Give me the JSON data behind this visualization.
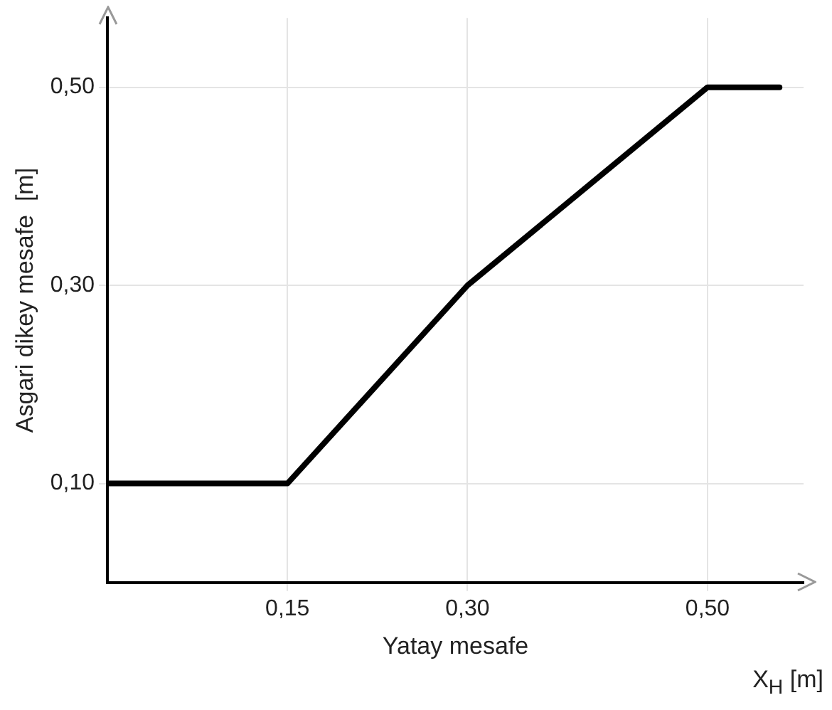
{
  "chart_data": {
    "type": "line",
    "xlabel": "Yatay mesafe",
    "ylabel": "Asgari dikey mesafe  [m]",
    "annotations": [
      "X$_{H}$ [m]"
    ],
    "x": [
      0,
      0.15,
      0.3,
      0.5,
      0.56
    ],
    "series": [
      {
        "color": "#000000",
        "values": [
          0.1,
          0.1,
          0.3,
          0.5,
          0.5
        ]
      }
    ],
    "xlim": [
      0,
      0.58
    ],
    "ylim": [
      0,
      0.57
    ],
    "xticks": [
      {
        "value": 0.15,
        "label": "0,15"
      },
      {
        "value": 0.3,
        "label": "0,30"
      },
      {
        "value": 0.5,
        "label": "0,50"
      }
    ],
    "yticks": [
      {
        "value": 0.1,
        "label": "0,10"
      },
      {
        "value": 0.3,
        "label": "0,30"
      },
      {
        "value": 0.5,
        "label": "0,50"
      }
    ],
    "grid": true,
    "legend": false,
    "marker": "none",
    "line_style": "solid"
  }
}
